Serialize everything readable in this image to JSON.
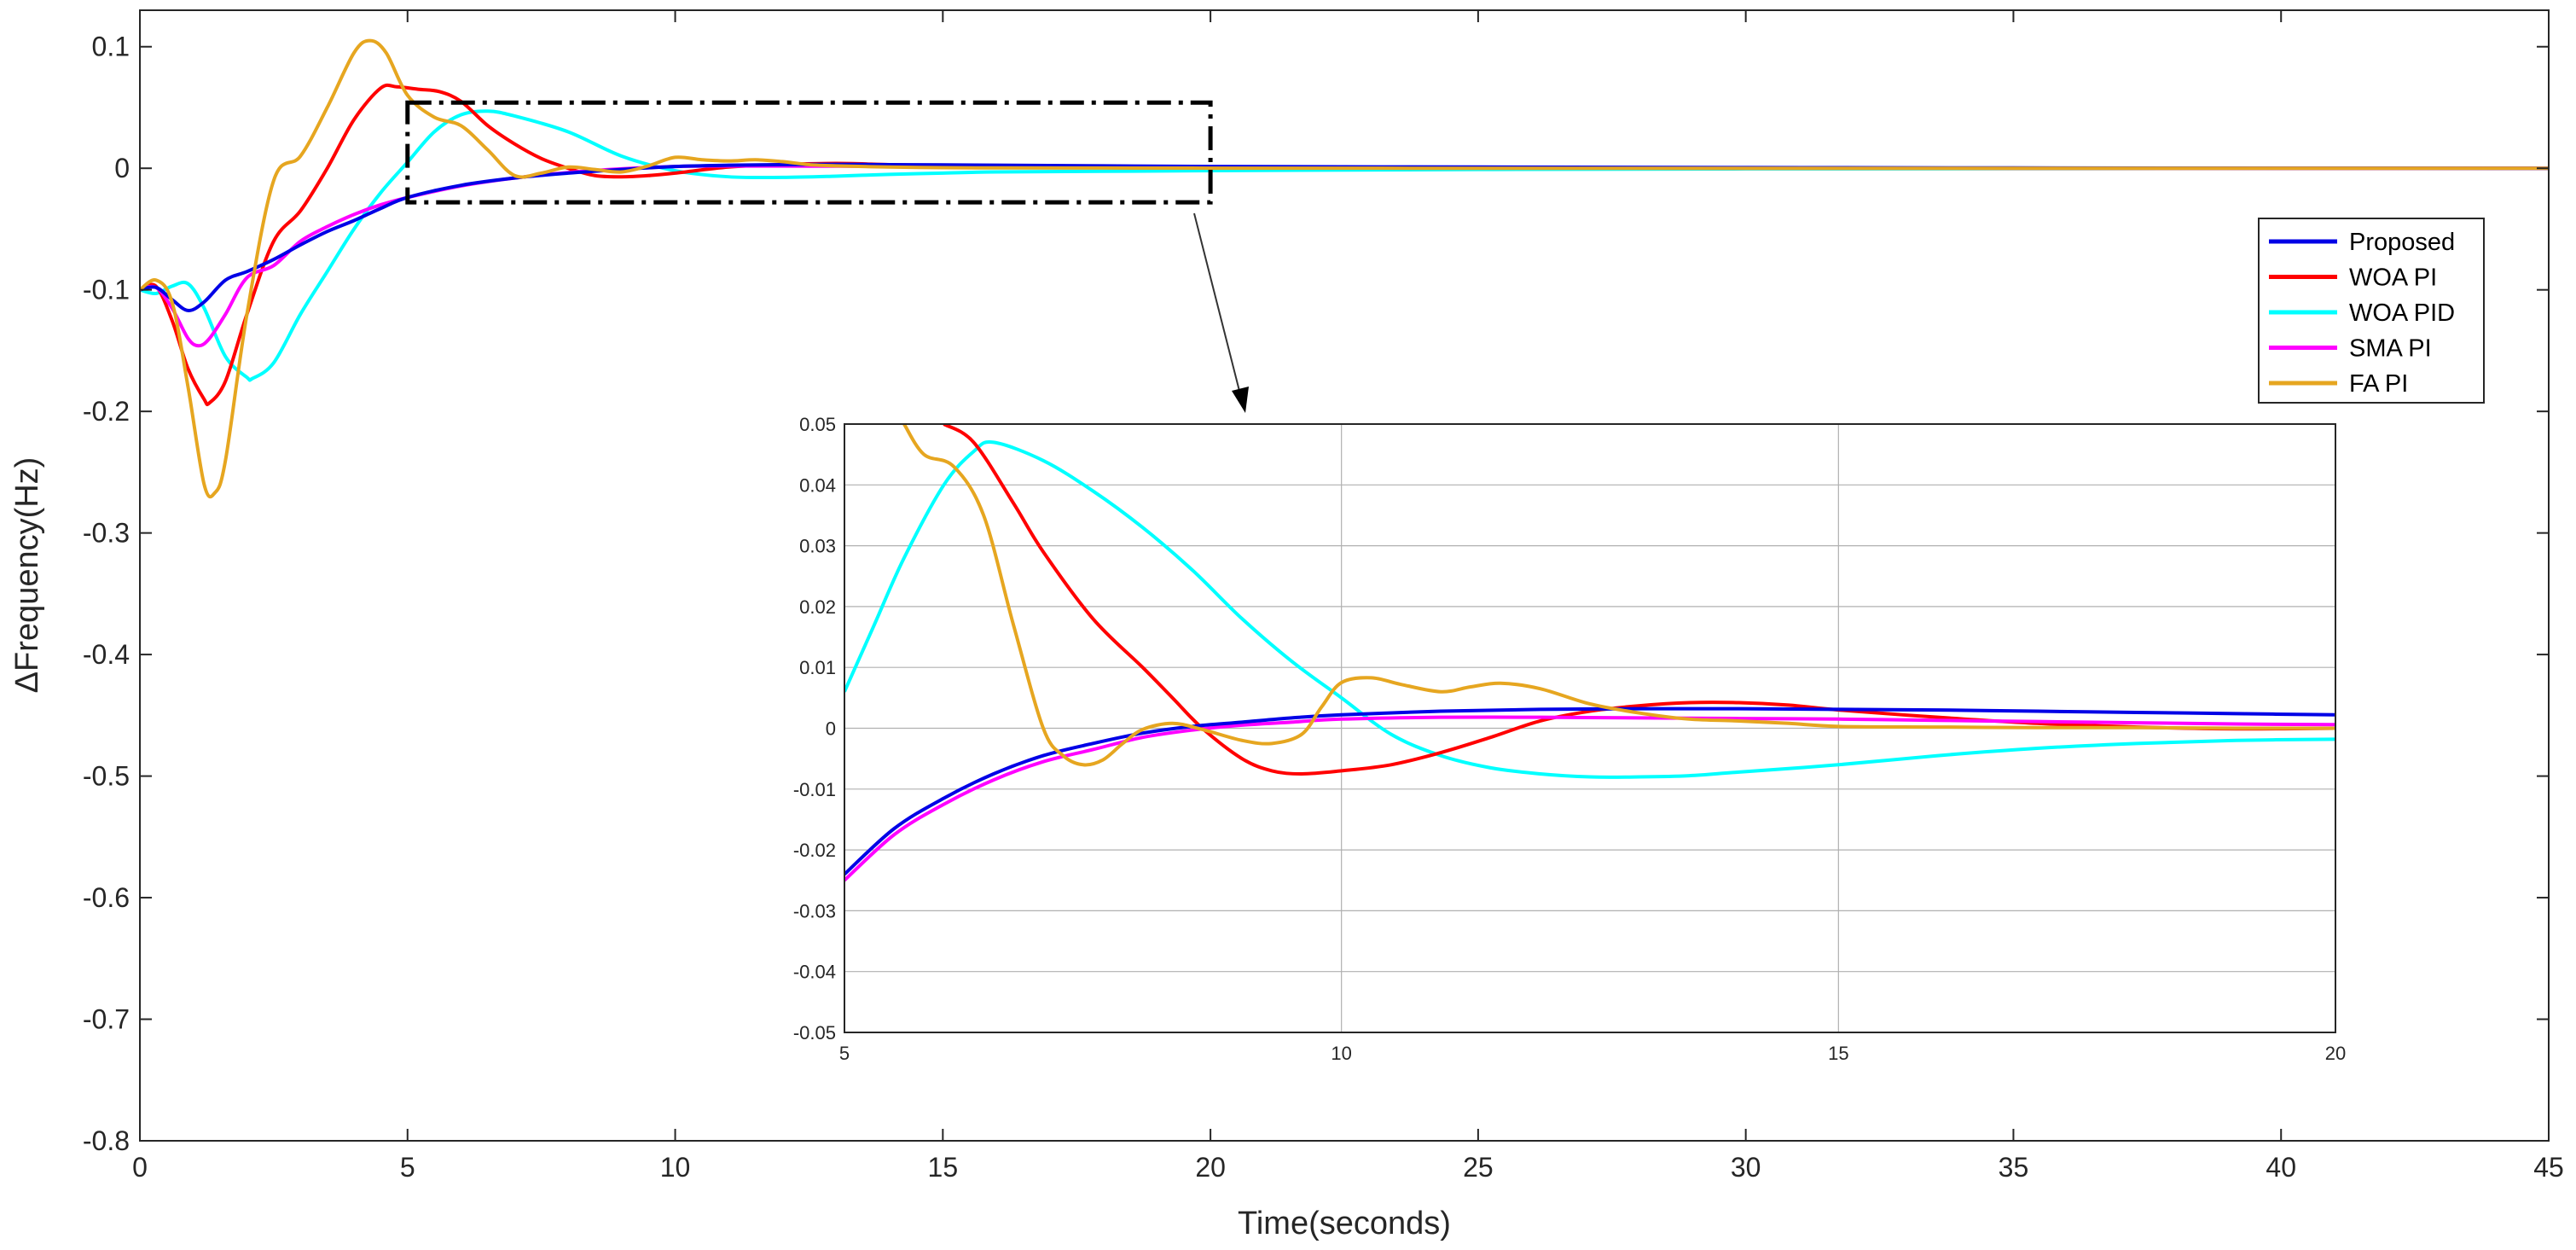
{
  "chart_data": [
    {
      "type": "line",
      "title": "",
      "xlabel": "Time(seconds)",
      "ylabel": "ΔFrequency(Hz)",
      "xlim": [
        0,
        45
      ],
      "ylim": [
        -0.8,
        0.13
      ],
      "xticks": [
        "0",
        "5",
        "10",
        "15",
        "20",
        "25",
        "30",
        "35",
        "40",
        "45"
      ],
      "yticks": [
        "0.1",
        "0",
        "-0.1",
        "-0.2",
        "-0.3",
        "-0.4",
        "-0.5",
        "-0.6",
        "-0.7",
        "-0.8"
      ],
      "grid": false,
      "legend_position": "right",
      "series": [
        {
          "name": "Proposed",
          "color": "#0000e6",
          "x": [
            0,
            0.3,
            0.6,
            0.9,
            1.2,
            1.6,
            2.0,
            2.5,
            3.0,
            3.5,
            4.0,
            4.5,
            5,
            6,
            7,
            8,
            9,
            10,
            11,
            12,
            13,
            14,
            15,
            16,
            18,
            20,
            25,
            30,
            35,
            40,
            45
          ],
          "y": [
            -0.1,
            -0.098,
            -0.108,
            -0.117,
            -0.11,
            -0.092,
            -0.085,
            -0.075,
            -0.063,
            -0.052,
            -0.043,
            -0.033,
            -0.024,
            -0.014,
            -0.008,
            -0.004,
            -0.001,
            0.0015,
            0.0025,
            0.003,
            0.0032,
            0.003,
            0.0028,
            0.0025,
            0.002,
            0.0015,
            0.001,
            0.0006,
            0.0003,
            0.0001,
            0
          ]
        },
        {
          "name": "WOA PI",
          "color": "#ff0000",
          "x": [
            0,
            0.3,
            0.6,
            0.9,
            1.2,
            1.3,
            1.6,
            2.0,
            2.5,
            3.0,
            3.5,
            4.0,
            4.5,
            4.8,
            5.2,
            5.6,
            6.0,
            6.5,
            7.0,
            7.5,
            8.0,
            8.5,
            9.0,
            9.5,
            10,
            11,
            12,
            13,
            14,
            15,
            16,
            18,
            20,
            25,
            30,
            35,
            40,
            45
          ],
          "y": [
            -0.1,
            -0.097,
            -0.125,
            -0.165,
            -0.19,
            -0.193,
            -0.175,
            -0.12,
            -0.06,
            -0.035,
            0.0,
            0.04,
            0.066,
            0.067,
            0.065,
            0.063,
            0.055,
            0.035,
            0.02,
            0.008,
            0.0,
            -0.006,
            -0.007,
            -0.006,
            -0.004,
            0.001,
            0.003,
            0.004,
            0.003,
            0.002,
            0.0015,
            0.0008,
            0.0004,
            0.0002,
            0.0001,
            0,
            0,
            0
          ]
        },
        {
          "name": "WOA PID",
          "color": "#00ffff",
          "x": [
            0,
            0.3,
            0.6,
            0.9,
            1.2,
            1.6,
            2.0,
            2.1,
            2.5,
            3.0,
            3.5,
            4.0,
            4.5,
            5.0,
            5.5,
            6.0,
            6.5,
            7.0,
            8.0,
            9.0,
            10,
            11,
            12,
            13,
            14,
            15,
            16,
            18,
            20,
            25,
            30,
            35,
            40,
            45
          ],
          "y": [
            -0.1,
            -0.103,
            -0.097,
            -0.095,
            -0.115,
            -0.155,
            -0.172,
            -0.173,
            -0.16,
            -0.12,
            -0.085,
            -0.05,
            -0.02,
            0.005,
            0.03,
            0.044,
            0.047,
            0.043,
            0.03,
            0.01,
            -0.002,
            -0.007,
            -0.0075,
            -0.0065,
            -0.005,
            -0.004,
            -0.003,
            -0.0025,
            -0.002,
            -0.001,
            -0.0005,
            -0.0003,
            -0.0001,
            0
          ]
        },
        {
          "name": "SMA PI",
          "color": "#ff00ff",
          "x": [
            0,
            0.3,
            0.6,
            0.9,
            1.1,
            1.3,
            1.6,
            2.0,
            2.5,
            3.0,
            3.5,
            4.0,
            4.5,
            5,
            6,
            7,
            8,
            9,
            10,
            11,
            12,
            13,
            14,
            15,
            16,
            18,
            20,
            25,
            30,
            35,
            40,
            45
          ],
          "y": [
            -0.1,
            -0.098,
            -0.115,
            -0.14,
            -0.146,
            -0.14,
            -0.12,
            -0.09,
            -0.08,
            -0.06,
            -0.048,
            -0.038,
            -0.03,
            -0.024,
            -0.0145,
            -0.008,
            -0.0035,
            -0.0005,
            0.0015,
            0.0018,
            0.0018,
            0.0017,
            0.0016,
            0.0015,
            0.0013,
            0.001,
            0.0007,
            0.0004,
            0.0002,
            0.0001,
            0,
            0
          ]
        },
        {
          "name": "FA PI",
          "color": "#e6a620",
          "x": [
            0,
            0.3,
            0.6,
            0.9,
            1.2,
            1.4,
            1.6,
            2.0,
            2.5,
            3.0,
            3.5,
            4.0,
            4.3,
            4.6,
            5.0,
            5.5,
            6.0,
            6.5,
            7.0,
            7.5,
            8.0,
            8.5,
            9.0,
            9.5,
            10,
            10.5,
            11,
            11.5,
            12,
            12.5,
            13,
            14,
            15,
            16,
            18,
            20,
            25,
            30,
            35,
            40,
            45
          ],
          "y": [
            -0.1,
            -0.092,
            -0.11,
            -0.18,
            -0.26,
            -0.267,
            -0.24,
            -0.12,
            -0.01,
            0.01,
            0.05,
            0.095,
            0.105,
            0.095,
            0.06,
            0.042,
            0.035,
            0.015,
            -0.006,
            -0.004,
            0.001,
            -0.001,
            -0.003,
            0.002,
            0.009,
            0.007,
            0.006,
            0.007,
            0.0055,
            0.003,
            0.002,
            0.001,
            0.0005,
            0.0003,
            0.0002,
            0.0001,
            0,
            0,
            0,
            0,
            0
          ]
        }
      ],
      "zoom_box": {
        "xlim": [
          5,
          20
        ],
        "ylim": [
          -0.028,
          0.054
        ]
      }
    },
    {
      "type": "line",
      "title": "",
      "xlabel": "",
      "ylabel": "",
      "xlim": [
        5,
        20
      ],
      "ylim": [
        -0.05,
        0.05
      ],
      "xticks": [
        "5",
        "10",
        "15",
        "20"
      ],
      "yticks": [
        "0.05",
        "0.04",
        "0.03",
        "0.02",
        "0.01",
        "0",
        "-0.01",
        "-0.02",
        "-0.03",
        "-0.04",
        "-0.05"
      ],
      "grid": true,
      "series": [
        {
          "name": "Proposed",
          "color": "#0000e6",
          "x": [
            5,
            5.5,
            6,
            6.5,
            7,
            7.5,
            8,
            8.5,
            9,
            9.5,
            10,
            11,
            12,
            13,
            14,
            15,
            16,
            17,
            18,
            19,
            20
          ],
          "y": [
            -0.024,
            -0.0165,
            -0.0115,
            -0.0075,
            -0.0045,
            -0.0025,
            -0.0008,
            0.0003,
            0.001,
            0.0017,
            0.0022,
            0.0028,
            0.0031,
            0.0032,
            0.0032,
            0.0031,
            0.003,
            0.0028,
            0.0026,
            0.0024,
            0.0022
          ]
        },
        {
          "name": "WOA PI",
          "color": "#ff0000",
          "x": [
            6.0,
            6.3,
            6.7,
            7.0,
            7.5,
            8.0,
            8.3,
            8.6,
            9.0,
            9.3,
            9.6,
            10,
            10.5,
            11,
            11.5,
            12,
            12.5,
            13,
            13.5,
            14,
            14.5,
            15,
            16,
            17,
            18,
            19,
            20
          ],
          "y": [
            0.05,
            0.047,
            0.037,
            0.029,
            0.018,
            0.01,
            0.005,
            0.0,
            -0.005,
            -0.007,
            -0.0075,
            -0.007,
            -0.006,
            -0.004,
            -0.0015,
            0.0012,
            0.0028,
            0.0037,
            0.0042,
            0.0042,
            0.0038,
            0.003,
            0.0018,
            0.0008,
            0.0002,
            -0.0001,
            0.0
          ]
        },
        {
          "name": "WOA PID",
          "color": "#00ffff",
          "x": [
            5,
            5.3,
            5.6,
            6.0,
            6.3,
            6.5,
            7.0,
            7.5,
            8.0,
            8.5,
            9.0,
            9.5,
            10,
            10.5,
            11,
            11.5,
            12,
            12.5,
            13,
            13.5,
            14,
            15,
            16,
            17,
            18,
            19,
            20
          ],
          "y": [
            0.006,
            0.017,
            0.028,
            0.04,
            0.0455,
            0.047,
            0.044,
            0.039,
            0.033,
            0.026,
            0.018,
            0.011,
            0.005,
            -0.001,
            -0.0045,
            -0.0065,
            -0.0075,
            -0.008,
            -0.008,
            -0.0078,
            -0.0072,
            -0.006,
            -0.0045,
            -0.0033,
            -0.0025,
            -0.002,
            -0.0018
          ]
        },
        {
          "name": "SMA PI",
          "color": "#ff00ff",
          "x": [
            5,
            5.5,
            6,
            6.5,
            7,
            7.5,
            8,
            8.5,
            9,
            9.5,
            10,
            11,
            12,
            13,
            14,
            15,
            16,
            17,
            18,
            19,
            20
          ],
          "y": [
            -0.025,
            -0.0175,
            -0.0125,
            -0.0085,
            -0.0055,
            -0.0035,
            -0.0015,
            -0.0003,
            0.0005,
            0.001,
            0.0015,
            0.0018,
            0.0018,
            0.0017,
            0.0016,
            0.0015,
            0.0013,
            0.0011,
            0.0009,
            0.0007,
            0.0006
          ]
        },
        {
          "name": "FA PI",
          "color": "#e6a620",
          "x": [
            5.6,
            5.8,
            6.1,
            6.4,
            6.7,
            7.0,
            7.2,
            7.4,
            7.6,
            7.8,
            8.0,
            8.3,
            8.6,
            9.0,
            9.3,
            9.6,
            9.8,
            10,
            10.3,
            10.6,
            11,
            11.3,
            11.6,
            12,
            12.5,
            13,
            13.5,
            14,
            14.5,
            15,
            16,
            17,
            18,
            19,
            20
          ],
          "y": [
            0.05,
            0.045,
            0.043,
            0.035,
            0.017,
            0.0,
            -0.0045,
            -0.006,
            -0.0052,
            -0.0025,
            -0.0002,
            0.0008,
            -0.0002,
            -0.002,
            -0.0025,
            -0.001,
            0.0035,
            0.0075,
            0.0083,
            0.0072,
            0.006,
            0.0068,
            0.0074,
            0.0065,
            0.004,
            0.0025,
            0.0015,
            0.0012,
            0.0008,
            0.0003,
            0.0002,
            0.0001,
            0.0001,
            0.0,
            0.0
          ]
        }
      ]
    }
  ]
}
